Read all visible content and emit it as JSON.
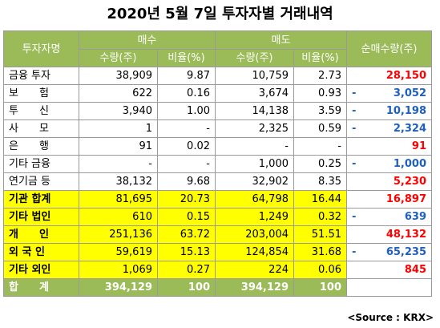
{
  "title": "2020년 5월 7일 투자자별 거래내역",
  "header": {
    "investor": "투자자명",
    "buy": "매수",
    "sell": "매도",
    "net": "순매수량(주)",
    "qty": "수량(주)",
    "ratio": "비율(%)"
  },
  "rows": [
    {
      "name": "금융 투자",
      "buy_qty": "38,909",
      "buy_ratio": "9.87",
      "sell_qty": "10,759",
      "sell_ratio": "2.73",
      "net_sign": "",
      "net": "28,150"
    },
    {
      "name": "보　　험",
      "buy_qty": "622",
      "buy_ratio": "0.16",
      "sell_qty": "3,674",
      "sell_ratio": "0.93",
      "net_sign": "-",
      "net": "3,052"
    },
    {
      "name": "투　　신",
      "buy_qty": "3,940",
      "buy_ratio": "1.00",
      "sell_qty": "14,138",
      "sell_ratio": "3.59",
      "net_sign": "-",
      "net": "10,198"
    },
    {
      "name": "사　　모",
      "buy_qty": "1",
      "buy_ratio": "-",
      "sell_qty": "2,325",
      "sell_ratio": "0.59",
      "net_sign": "-",
      "net": "2,324"
    },
    {
      "name": "은　　행",
      "buy_qty": "91",
      "buy_ratio": "0.02",
      "sell_qty": "-",
      "sell_ratio": "-",
      "net_sign": "",
      "net": "91"
    },
    {
      "name": "기타 금융",
      "buy_qty": "-",
      "buy_ratio": "-",
      "sell_qty": "1,000",
      "sell_ratio": "0.25",
      "net_sign": "-",
      "net": "1,000"
    },
    {
      "name": "연기금 등",
      "buy_qty": "38,132",
      "buy_ratio": "9.68",
      "sell_qty": "32,902",
      "sell_ratio": "8.35",
      "net_sign": "",
      "net": "5,230"
    },
    {
      "name": "기관 합계",
      "buy_qty": "81,695",
      "buy_ratio": "20.73",
      "sell_qty": "64,798",
      "sell_ratio": "16.44",
      "net_sign": "",
      "net": "16,897"
    },
    {
      "name": "기타 법인",
      "buy_qty": "610",
      "buy_ratio": "0.15",
      "sell_qty": "1,249",
      "sell_ratio": "0.32",
      "net_sign": "-",
      "net": "639"
    },
    {
      "name": "개　　인",
      "buy_qty": "251,136",
      "buy_ratio": "63.72",
      "sell_qty": "203,004",
      "sell_ratio": "51.51",
      "net_sign": "",
      "net": "48,132"
    },
    {
      "name": "외 국 인",
      "buy_qty": "59,619",
      "buy_ratio": "15.13",
      "sell_qty": "124,854",
      "sell_ratio": "31.68",
      "net_sign": "-",
      "net": "65,235"
    },
    {
      "name": "기타 외인",
      "buy_qty": "1,069",
      "buy_ratio": "0.27",
      "sell_qty": "224",
      "sell_ratio": "0.06",
      "net_sign": "",
      "net": "845"
    }
  ],
  "total": {
    "name": "합　　계",
    "buy_qty": "394,129",
    "buy_ratio": "100",
    "sell_qty": "394,129",
    "sell_ratio": "100"
  },
  "source": "<Source : KRX>",
  "colors": {
    "header_green": "#9bbb59",
    "highlight_yellow": "#ffff00",
    "positive_red": "#ff0000",
    "negative_blue": "#1f5fbd"
  }
}
